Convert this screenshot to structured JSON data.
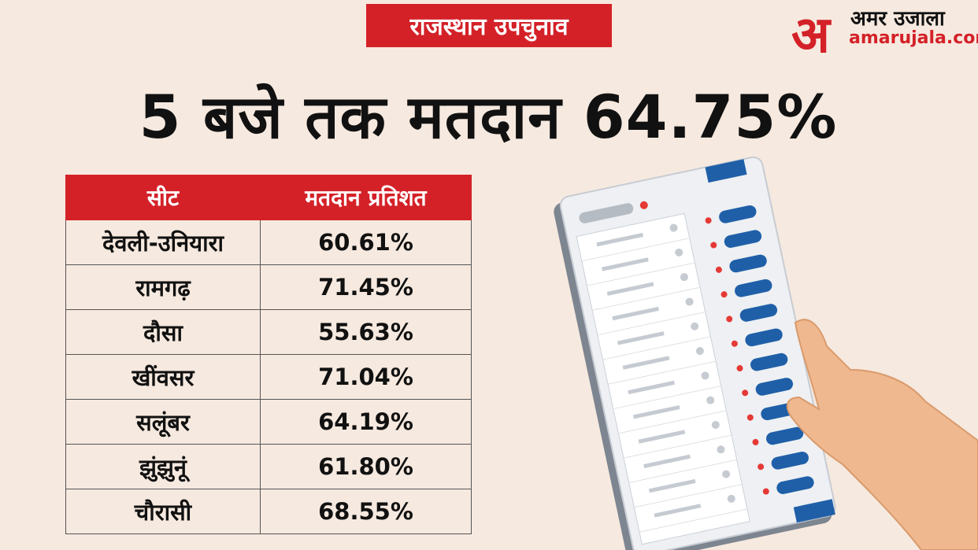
{
  "header": {
    "tag": "राजस्थान उपचुनाव",
    "title": "5 बजे तक मतदान 64.75%"
  },
  "logo": {
    "mark": "अ",
    "name": "अमर उजाला",
    "site": "amarujala.com"
  },
  "table": {
    "columns": [
      "सीट",
      "मतदान प्रतिशत"
    ],
    "rows": [
      [
        "देवली-उनियारा",
        "60.61%"
      ],
      [
        "रामगढ़",
        "71.45%"
      ],
      [
        "दौसा",
        "55.63%"
      ],
      [
        "खींवसर",
        "71.04%"
      ],
      [
        "सलूंबर",
        "64.19%"
      ],
      [
        "झुंझुनूं",
        "61.80%"
      ],
      [
        "चौरासी",
        "68.55%"
      ]
    ]
  }
}
